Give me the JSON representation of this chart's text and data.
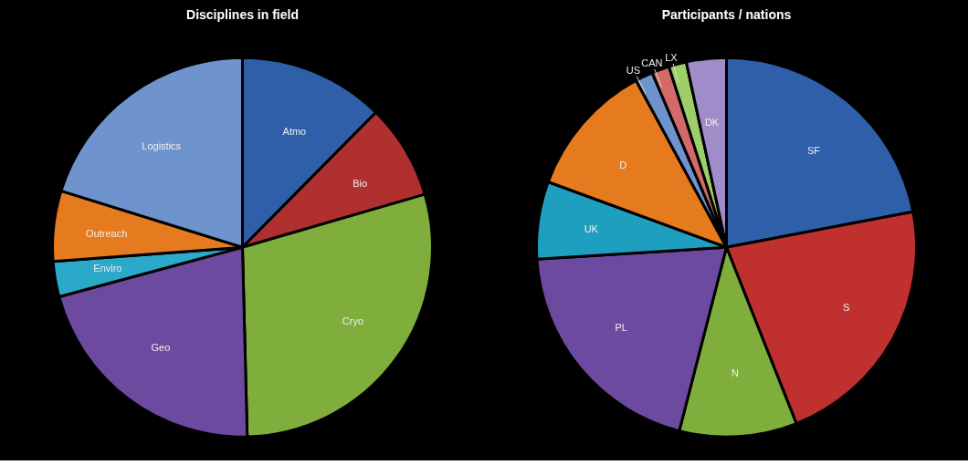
{
  "chart_data": [
    {
      "type": "pie",
      "title": "Disciplines in field",
      "categories": [
        "Atmo",
        "Bio",
        "Cryo",
        "Geo",
        "Enviro",
        "Outreach",
        "Logistics"
      ],
      "values": [
        12.4,
        8.1,
        29.1,
        21.2,
        3,
        6,
        20.2
      ],
      "colors": [
        "#2e5fa8",
        "#b03030",
        "#7fae3c",
        "#6c4aa0",
        "#2aa9c9",
        "#e67a1e",
        "#6f93cc"
      ]
    },
    {
      "type": "pie",
      "title": "Participants / nations",
      "categories": [
        "SF",
        "S",
        "N",
        "PL",
        "UK",
        "D",
        "US",
        "CAN",
        "LX",
        "DK"
      ],
      "values": [
        22,
        22,
        10,
        20,
        6.6,
        11.5,
        1.5,
        1.5,
        1.5,
        3.4
      ],
      "colors": [
        "#2e5fa8",
        "#c0302e",
        "#7fae3c",
        "#6c4aa0",
        "#1f9fbf",
        "#e67a1e",
        "#6f93cc",
        "#d26a6a",
        "#9ccf6a",
        "#a08cc8"
      ]
    }
  ]
}
